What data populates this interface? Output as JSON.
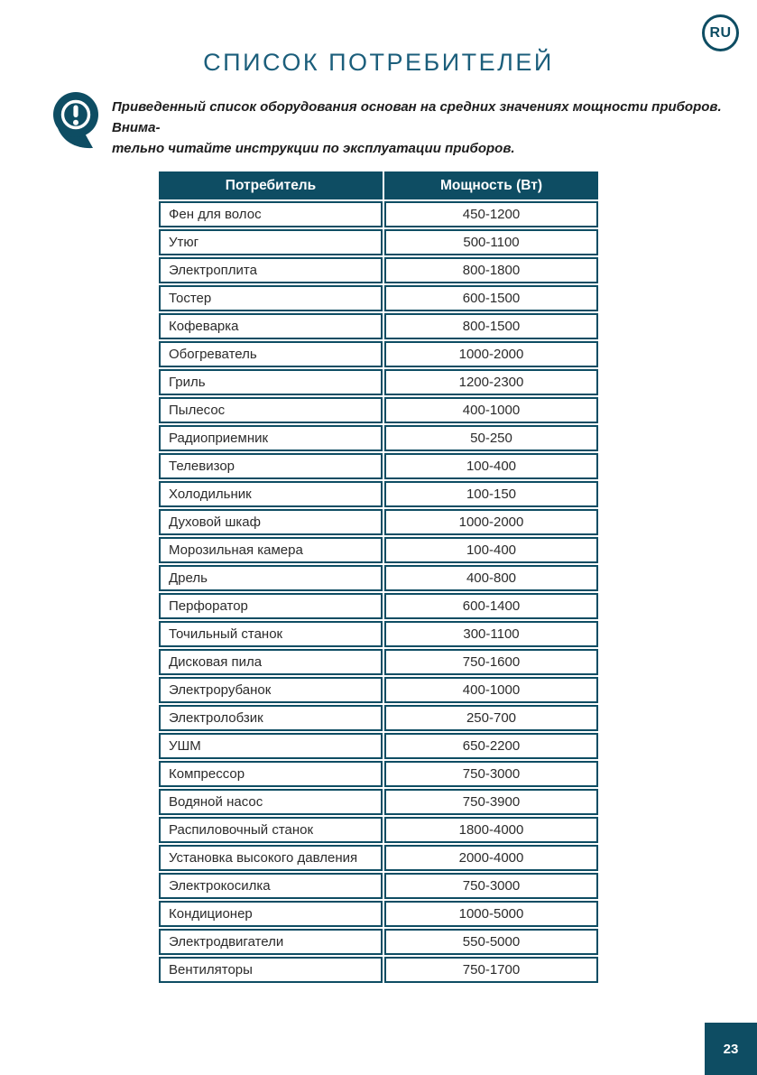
{
  "page": {
    "language_badge": "RU",
    "number": "23"
  },
  "title": "СПИСОК ПОТРЕБИТЕЛЕЙ",
  "note": {
    "icon": "exclamation-bubble-icon",
    "lines": [
      "Приведенный список оборудования основан на средних значениях мощности приборов. Внима-",
      "тельно читайте инструкции по эксплуатации приборов."
    ]
  },
  "table": {
    "columns": [
      "Потребитель",
      "Мощность (Вт)"
    ],
    "rows": [
      {
        "consumer": "Фен для волос",
        "power": "450-1200"
      },
      {
        "consumer": "Утюг",
        "power": "500-1100"
      },
      {
        "consumer": "Электроплита",
        "power": "800-1800"
      },
      {
        "consumer": "Тостер",
        "power": "600-1500"
      },
      {
        "consumer": "Кофеварка",
        "power": "800-1500"
      },
      {
        "consumer": "Обогреватель",
        "power": "1000-2000"
      },
      {
        "consumer": "Гриль",
        "power": "1200-2300"
      },
      {
        "consumer": "Пылесос",
        "power": "400-1000"
      },
      {
        "consumer": "Радиоприемник",
        "power": "50-250"
      },
      {
        "consumer": "Телевизор",
        "power": "100-400"
      },
      {
        "consumer": "Холодильник",
        "power": "100-150"
      },
      {
        "consumer": "Духовой шкаф",
        "power": "1000-2000"
      },
      {
        "consumer": "Морозильная камера",
        "power": "100-400"
      },
      {
        "consumer": "Дрель",
        "power": "400-800"
      },
      {
        "consumer": "Перфоратор",
        "power": "600-1400"
      },
      {
        "consumer": "Точильный станок",
        "power": "300-1100"
      },
      {
        "consumer": "Дисковая пила",
        "power": "750-1600"
      },
      {
        "consumer": "Электрорубанок",
        "power": "400-1000"
      },
      {
        "consumer": "Электролобзик",
        "power": "250-700"
      },
      {
        "consumer": "УШМ",
        "power": "650-2200"
      },
      {
        "consumer": "Компрессор",
        "power": "750-3000"
      },
      {
        "consumer": "Водяной насос",
        "power": "750-3900"
      },
      {
        "consumer": "Распиловочный станок",
        "power": "1800-4000"
      },
      {
        "consumer": "Установка высокого давления",
        "power": "2000-4000"
      },
      {
        "consumer": "Электрокосилка",
        "power": "750-3000"
      },
      {
        "consumer": "Кондиционер",
        "power": "1000-5000"
      },
      {
        "consumer": "Электродвигатели",
        "power": "550-5000"
      },
      {
        "consumer": "Вентиляторы",
        "power": "750-1700"
      }
    ]
  },
  "colors": {
    "teal": "#0E4D63",
    "title_teal": "#1B5E7B",
    "body_text": "#2B2B2B",
    "header_text": "#FFFFFF"
  }
}
